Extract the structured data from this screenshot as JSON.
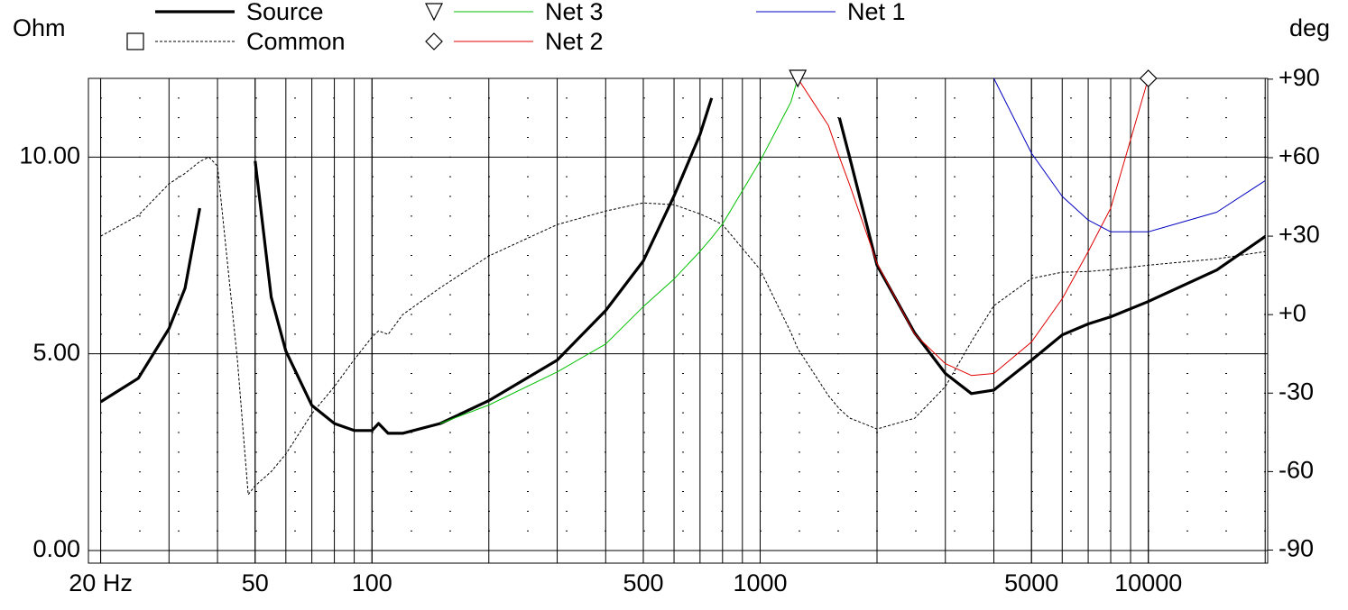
{
  "chart_data": {
    "type": "line",
    "xscale": "log",
    "ylabel": "Ohm",
    "y2label": "deg",
    "grid": true,
    "xlim": [
      18.6,
      20300
    ],
    "ylim": [
      -0.32,
      12
    ],
    "y2lim": [
      -95,
      90.3
    ],
    "xticks": [
      {
        "value": 20,
        "label": "20 Hz"
      },
      50,
      100,
      500,
      1000,
      5000,
      10000
    ],
    "yticks": [
      {
        "value": 0,
        "label": "0.00"
      },
      {
        "value": 5,
        "label": "5.00"
      },
      {
        "value": 10,
        "label": "10.00"
      }
    ],
    "y2ticks": [
      {
        "value": 90,
        "label": "+90"
      },
      {
        "value": 60,
        "label": "+60"
      },
      {
        "value": 30,
        "label": "+30"
      },
      {
        "value": 0,
        "label": "+0"
      },
      -30,
      -60,
      -90
    ],
    "x": [
      20,
      25,
      30,
      33,
      36,
      38,
      40,
      45,
      48,
      50,
      55,
      60,
      70,
      80,
      90,
      100,
      104,
      110,
      120,
      150,
      200,
      300,
      400,
      500,
      600,
      700,
      750,
      800,
      1000,
      1200,
      1250,
      1500,
      1600,
      1700,
      2000,
      2500,
      3000,
      3500,
      4000,
      5000,
      6000,
      7000,
      8000,
      10000,
      15000,
      20000
    ],
    "series": [
      {
        "name": "Source",
        "color": "#000000",
        "width": 3.2,
        "values": [
          3.78,
          4.38,
          5.64,
          6.67,
          8.7,
          null,
          null,
          null,
          null,
          9.9,
          6.44,
          5.07,
          3.69,
          3.23,
          3.05,
          3.05,
          3.23,
          2.98,
          2.98,
          3.23,
          3.81,
          4.84,
          6.1,
          7.36,
          9.01,
          10.57,
          11.5,
          null,
          null,
          null,
          null,
          null,
          11.0,
          10.0,
          7.25,
          5.53,
          4.5,
          3.99,
          4.08,
          4.84,
          5.48,
          5.76,
          5.94,
          6.33,
          7.13,
          7.98
        ]
      },
      {
        "name": "Common",
        "color": "#000000",
        "width": 1,
        "dash": true,
        "marker": "square",
        "axis": "y2",
        "values": [
          30,
          37.9,
          50,
          54,
          58.5,
          60.2,
          56.8,
          -17.2,
          -68.8,
          -65.4,
          -60,
          -53.3,
          -37.9,
          -27.5,
          -17.2,
          -8.6,
          -6.2,
          -7.6,
          0,
          10.3,
          22.4,
          34.4,
          39.6,
          42.7,
          42,
          38.5,
          36.5,
          34.4,
          17.2,
          -6.9,
          -13,
          -31,
          -36,
          -39.5,
          -43.7,
          -39.6,
          -27.5,
          -10.3,
          3.4,
          13.8,
          16.2,
          16.5,
          17.2,
          18.9,
          21.3,
          24.1
        ]
      },
      {
        "name": "Net 3",
        "color": "#00c000",
        "width": 1,
        "marker": "triangle",
        "values": [
          null,
          null,
          null,
          null,
          null,
          null,
          null,
          null,
          null,
          null,
          null,
          null,
          null,
          null,
          null,
          null,
          null,
          null,
          null,
          3.23,
          3.7,
          4.54,
          5.25,
          6.2,
          6.9,
          7.6,
          7.95,
          8.3,
          9.9,
          11.4,
          12,
          null,
          null,
          null,
          null,
          null,
          null,
          null,
          null,
          null,
          null,
          null,
          null,
          null,
          null,
          null
        ]
      },
      {
        "name": "Net 2",
        "color": "#e00000",
        "width": 1,
        "marker": "diamond",
        "values": [
          null,
          null,
          null,
          null,
          null,
          null,
          null,
          null,
          null,
          null,
          null,
          null,
          null,
          null,
          null,
          null,
          null,
          null,
          null,
          null,
          null,
          null,
          null,
          null,
          null,
          null,
          null,
          null,
          null,
          null,
          12,
          10.8,
          10.0,
          9.3,
          7.3,
          5.5,
          4.75,
          4.45,
          4.5,
          5.3,
          6.4,
          7.6,
          8.7,
          12,
          null,
          null
        ]
      },
      {
        "name": "Net 1",
        "color": "#0000c0",
        "width": 1,
        "values": [
          null,
          null,
          null,
          null,
          null,
          null,
          null,
          null,
          null,
          null,
          null,
          null,
          null,
          null,
          null,
          null,
          null,
          null,
          null,
          null,
          null,
          null,
          null,
          null,
          null,
          null,
          null,
          null,
          null,
          null,
          null,
          null,
          null,
          null,
          null,
          null,
          null,
          null,
          12,
          10.1,
          9.0,
          8.4,
          8.1,
          8.1,
          8.6,
          9.4
        ]
      }
    ]
  }
}
